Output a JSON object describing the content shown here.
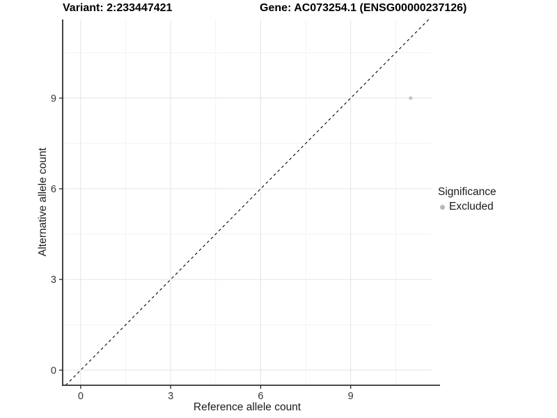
{
  "chart_data": {
    "type": "scatter",
    "titles": {
      "left": "Variant: 2:233447421",
      "right": "Gene: AC073254.1 (ENSG00000237126)"
    },
    "xlabel": "Reference allele count",
    "ylabel": "Alternative allele count",
    "x_ticks": [
      0,
      3,
      6,
      9
    ],
    "y_ticks": [
      0,
      3,
      6,
      9
    ],
    "minor_gridlines_x": [
      1.5,
      4.5,
      7.5,
      10.5
    ],
    "minor_gridlines_y": [
      1.5,
      4.5,
      7.5,
      10.5
    ],
    "xlim": [
      -0.6,
      11.7
    ],
    "ylim": [
      -0.5,
      11.6
    ],
    "grid": true,
    "identity_line": {
      "style": "dashed",
      "color": "#000000"
    },
    "series": [
      {
        "name": "Excluded",
        "color": "#c3c3c3",
        "points": [
          {
            "x": 11,
            "y": 9
          }
        ]
      }
    ],
    "legend": {
      "title": "Significance",
      "position": "right",
      "items": [
        {
          "label": "Excluded",
          "color": "#b9b9b9"
        }
      ]
    },
    "colors": {
      "background": "#ffffff",
      "grid_major": "#e3e3e3",
      "grid_minor": "#f2f2f2",
      "axis_line": "#2f2f2f",
      "tick_mark": "#333333",
      "tick_label": "#333333",
      "title_text": "#000000"
    }
  }
}
